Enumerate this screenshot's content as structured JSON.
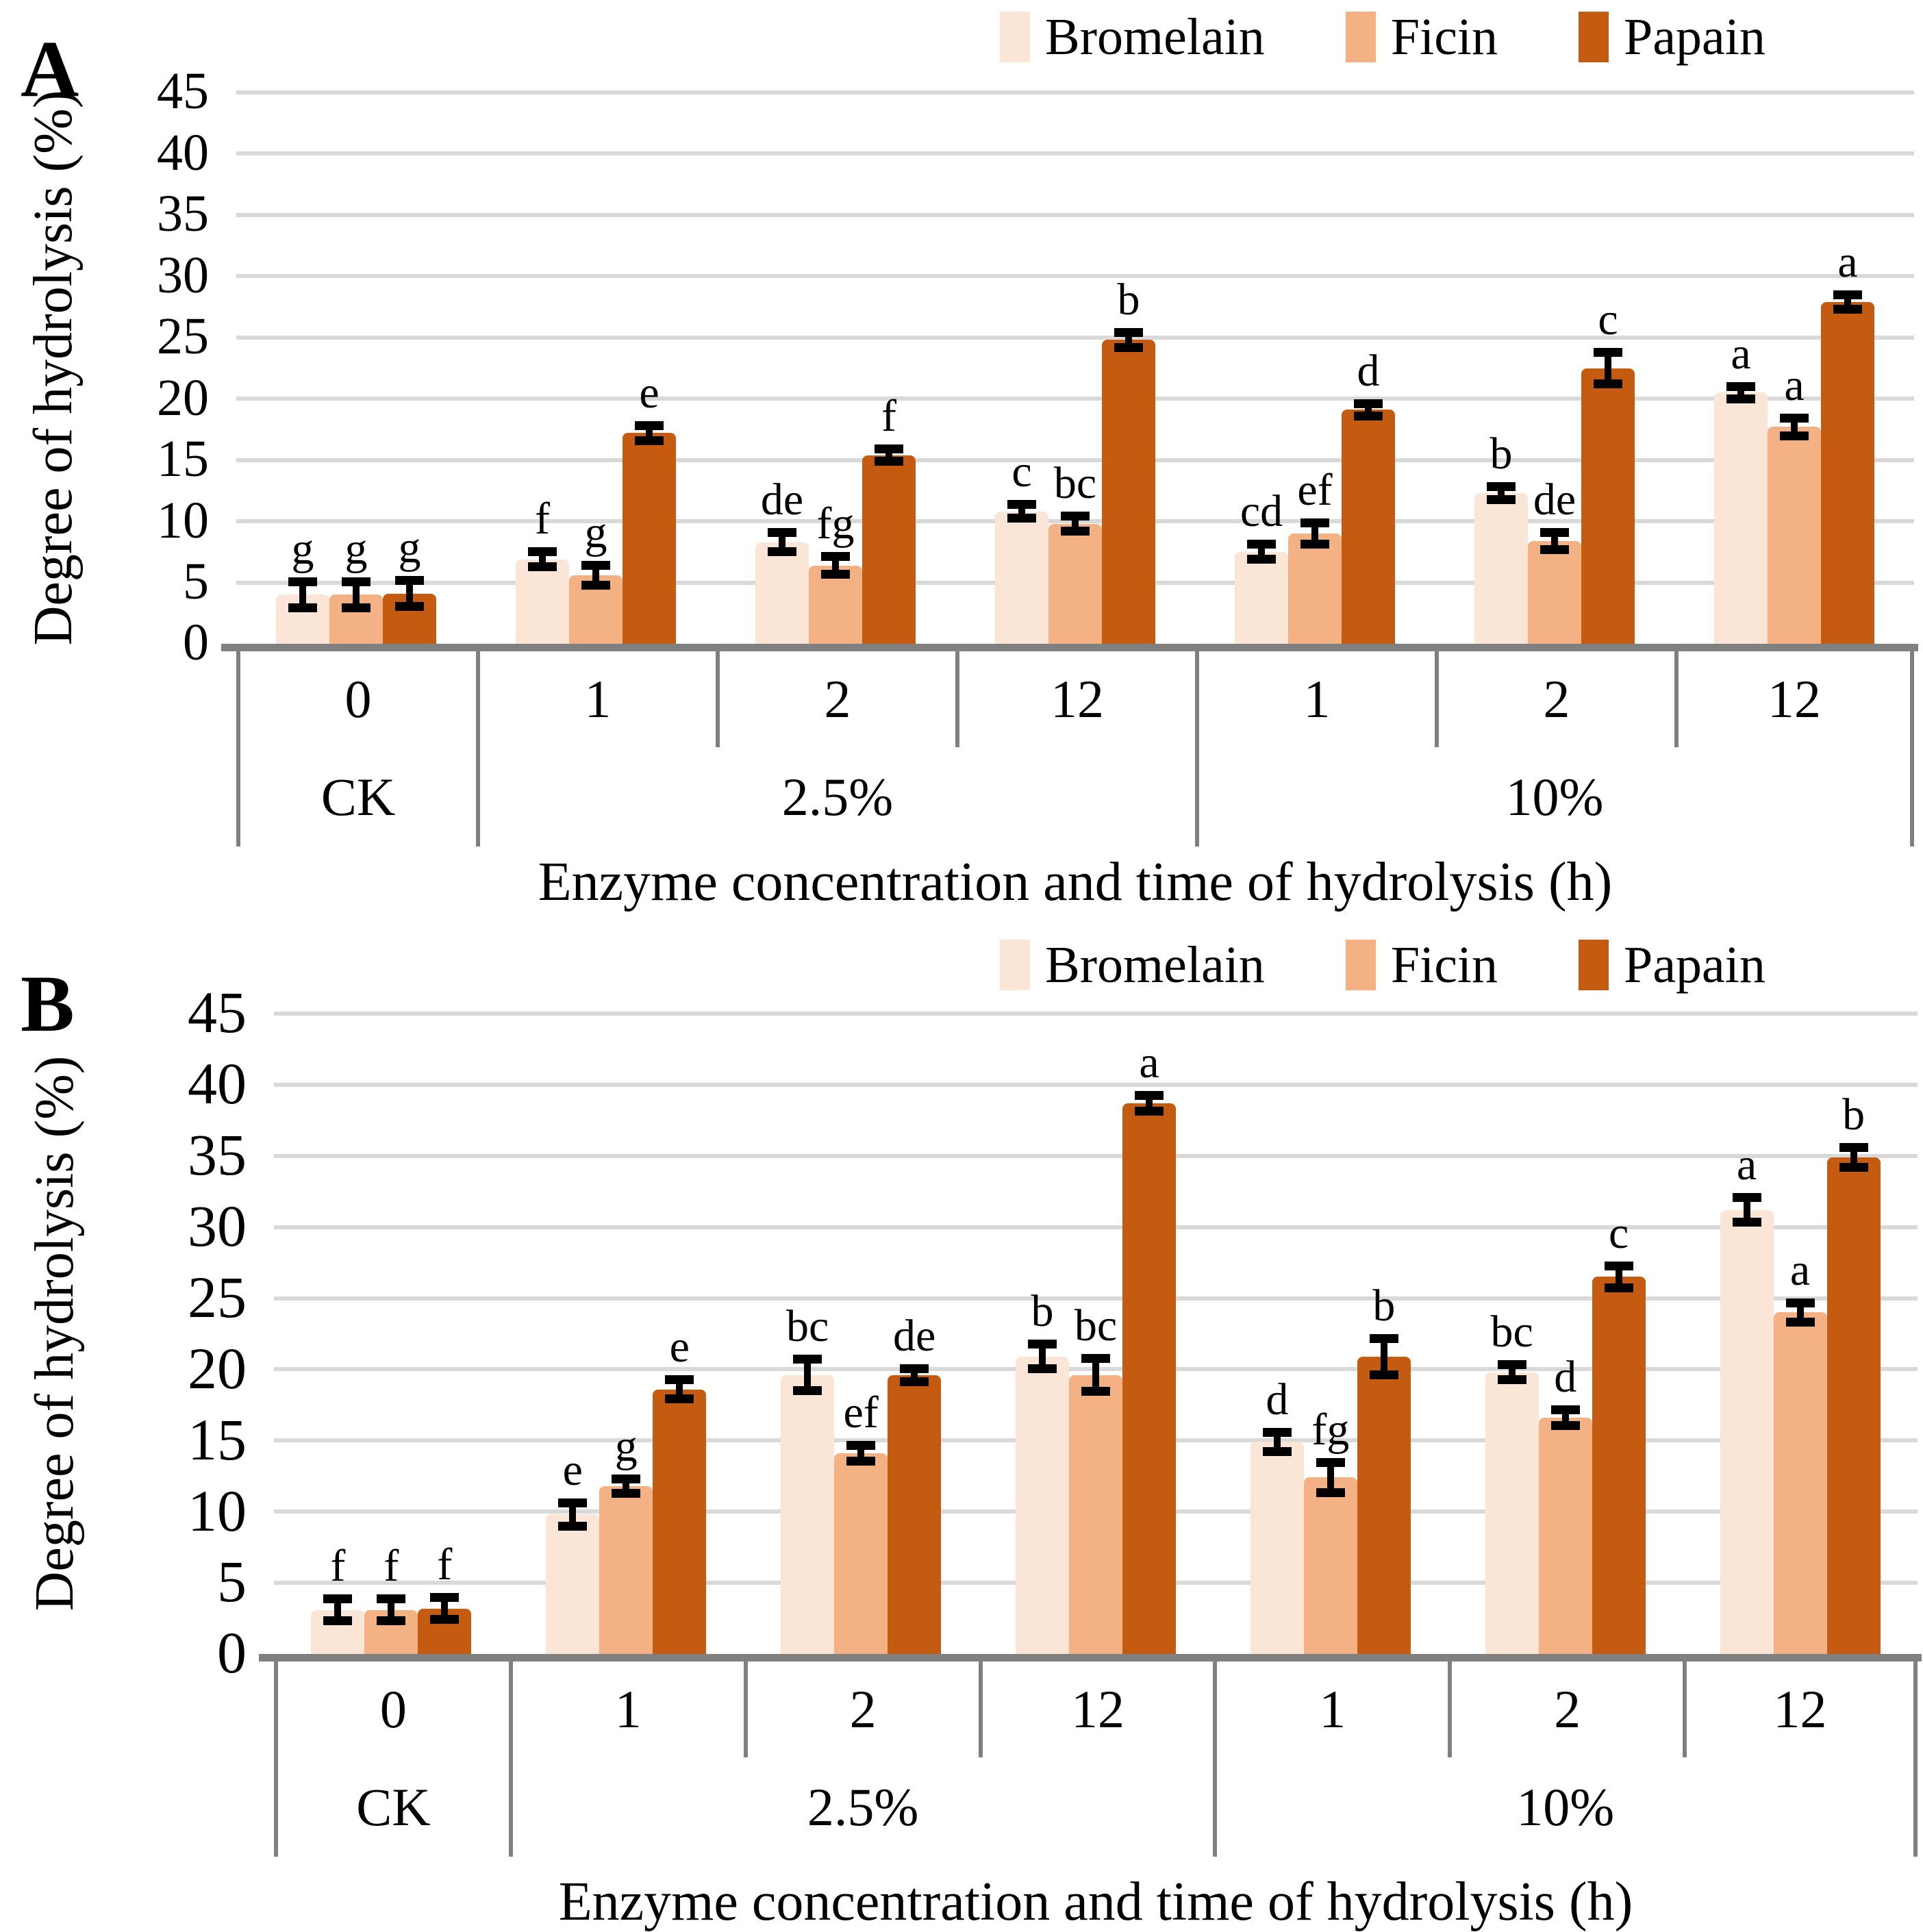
{
  "colors": {
    "bromelain": "#FBE5D6",
    "ficin": "#F4B183",
    "papain": "#C55A11",
    "gridline": "#D9D9D9",
    "axis": "#808080",
    "error_bar": "#000000"
  },
  "chart_data": [
    {
      "type": "bar",
      "panel_label": "A",
      "title": "",
      "ylabel": "Degree of hydrolysis (%)",
      "xlabel": "Enzyme concentration and time of hydrolysis (h)",
      "ylim": [
        0,
        45
      ],
      "ytick_step": 5,
      "yticks": [
        0,
        5,
        10,
        15,
        20,
        25,
        30,
        35,
        40,
        45
      ],
      "grid": "horizontal",
      "legend_position": "top-right",
      "time_labels": [
        "0",
        "1",
        "2",
        "12",
        "1",
        "2",
        "12"
      ],
      "concentration_groups": [
        {
          "label": "CK",
          "span": 1
        },
        {
          "label": "2.5%",
          "span": 3
        },
        {
          "label": "10%",
          "span": 3
        }
      ],
      "series": [
        {
          "name": "Bromelain",
          "color": "#FBE5D6",
          "values": [
            4.0,
            6.9,
            8.3,
            10.8,
            7.5,
            12.3,
            20.5
          ],
          "errors": [
            0.75,
            0.3,
            0.5,
            0.25,
            0.3,
            0.25,
            0.2
          ],
          "letters": [
            "g",
            "f",
            "de",
            "c",
            "cd",
            "b",
            "a"
          ]
        },
        {
          "name": "Ficin",
          "color": "#F4B183",
          "values": [
            4.0,
            5.6,
            6.4,
            9.8,
            9.0,
            8.4,
            17.7
          ],
          "errors": [
            0.75,
            0.5,
            0.4,
            0.3,
            0.55,
            0.4,
            0.4
          ],
          "letters": [
            "g",
            "g",
            "fg",
            "bc",
            "ef",
            "de",
            "a"
          ]
        },
        {
          "name": "Papain",
          "color": "#C55A11",
          "values": [
            4.1,
            17.2,
            15.4,
            24.8,
            19.1,
            22.5,
            27.9
          ],
          "errors": [
            0.75,
            0.3,
            0.2,
            0.3,
            0.2,
            1.0,
            0.3
          ],
          "letters": [
            "g",
            "e",
            "f",
            "b",
            "d",
            "c",
            "a"
          ]
        }
      ]
    },
    {
      "type": "bar",
      "panel_label": "B",
      "title": "",
      "ylabel": "Degree of hydrolysis (%)",
      "xlabel": "Enzyme concentration and time of hydrolysis (h)",
      "ylim": [
        0,
        45
      ],
      "ytick_step": 5,
      "yticks": [
        0,
        5,
        10,
        15,
        20,
        25,
        30,
        35,
        40,
        45
      ],
      "grid": "horizontal",
      "legend_position": "top-right",
      "time_labels": [
        "0",
        "1",
        "2",
        "12",
        "1",
        "2",
        "12"
      ],
      "concentration_groups": [
        {
          "label": "CK",
          "span": 1
        },
        {
          "label": "2.5%",
          "span": 3
        },
        {
          "label": "10%",
          "span": 3
        }
      ],
      "series": [
        {
          "name": "Bromelain",
          "color": "#FBE5D6",
          "values": [
            3.1,
            9.8,
            19.6,
            20.9,
            14.9,
            19.8,
            31.2
          ],
          "errors": [
            0.5,
            0.55,
            0.85,
            0.6,
            0.4,
            0.25,
            0.6
          ],
          "letters": [
            "f",
            "e",
            "bc",
            "b",
            "d",
            "bc",
            "a"
          ]
        },
        {
          "name": "Ficin",
          "color": "#F4B183",
          "values": [
            3.1,
            11.8,
            14.1,
            19.6,
            12.4,
            16.6,
            24.0
          ],
          "errors": [
            0.5,
            0.25,
            0.3,
            0.9,
            0.8,
            0.3,
            0.4
          ],
          "letters": [
            "f",
            "g",
            "ef",
            "bc",
            "fg",
            "d",
            "a"
          ]
        },
        {
          "name": "Papain",
          "color": "#C55A11",
          "values": [
            3.2,
            18.6,
            19.6,
            38.7,
            20.9,
            26.5,
            34.9
          ],
          "errors": [
            0.5,
            0.4,
            0.2,
            0.3,
            1.0,
            0.5,
            0.45
          ],
          "letters": [
            "f",
            "e",
            "de",
            "a",
            "b",
            "c",
            "b"
          ]
        }
      ]
    }
  ]
}
